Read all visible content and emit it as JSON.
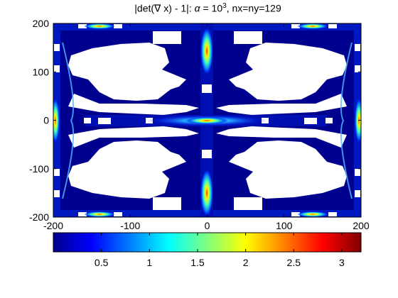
{
  "chart_data": {
    "type": "heatmap",
    "title": {
      "prefix": "|det(∇ x) - 1|: ",
      "alpha_symbol": "α",
      "equals": " = 10",
      "exponent": "3",
      "suffix": ", nx=ny=129"
    },
    "xlim": [
      -200,
      200
    ],
    "ylim": [
      -200,
      200
    ],
    "x_ticks": [
      "-200",
      "-100",
      "0",
      "100",
      "200"
    ],
    "y_ticks": [
      "200",
      "100",
      "0",
      "-100",
      "-200"
    ],
    "colorbar": {
      "colormap": "jet",
      "range": [
        0,
        3.2
      ],
      "ticks": [
        "0.5",
        "1",
        "1.5",
        "2",
        "2.5",
        "3"
      ],
      "tick_values": [
        0.5,
        1,
        1.5,
        2,
        2.5,
        3
      ]
    },
    "colors": {
      "background_field": "#00008f",
      "masked_regions": "#ffffff",
      "hot_spot": "#ff4000",
      "ridge": "#5fd0ff"
    }
  }
}
